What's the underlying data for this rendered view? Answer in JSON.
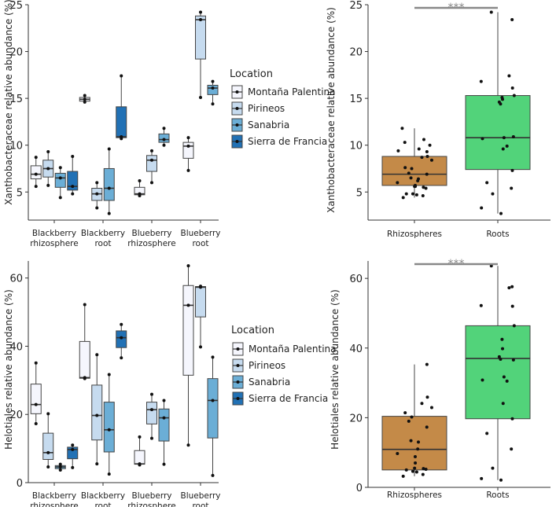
{
  "colors": {
    "legend": [
      "#f5f6fd",
      "#c6dbef",
      "#6baed6",
      "#2171b5"
    ],
    "rhizo": "#c48a48",
    "roots": "#52d37a",
    "sig": "#888888"
  },
  "legend": {
    "title": "Location",
    "entries": [
      "Montaña Palentina",
      "Pirineos",
      "Sanabria",
      "Sierra de Francia"
    ]
  },
  "chart_data": [
    {
      "id": "A",
      "type": "box",
      "ylabel": "Xanthobacteraceae relative abundance (%)",
      "ylim": [
        2,
        25
      ],
      "yticks": [
        5,
        10,
        15,
        20,
        25
      ],
      "categories": [
        [
          "Blackberry",
          "rhizosphere"
        ],
        [
          "Blackberry",
          "root"
        ],
        [
          "Blueberry",
          "rhizosphere"
        ],
        [
          "Blueberry",
          "root"
        ]
      ],
      "boxes": [
        {
          "cat": 0,
          "loc": 0,
          "min": 5.6,
          "q1": 6.4,
          "median": 6.9,
          "q3": 7.8,
          "max": 8.7,
          "points": [
            5.6,
            6.9,
            8.7
          ]
        },
        {
          "cat": 0,
          "loc": 1,
          "min": 5.7,
          "q1": 6.6,
          "median": 7.5,
          "q3": 8.4,
          "max": 9.3,
          "points": [
            5.7,
            7.5,
            9.3
          ]
        },
        {
          "cat": 0,
          "loc": 2,
          "min": 4.4,
          "q1": 5.5,
          "median": 6.5,
          "q3": 7.0,
          "max": 7.6,
          "points": [
            4.4,
            6.5,
            7.6
          ]
        },
        {
          "cat": 0,
          "loc": 3,
          "min": 4.8,
          "q1": 5.2,
          "median": 5.6,
          "q3": 7.2,
          "max": 8.8,
          "points": [
            4.8,
            5.6,
            8.8
          ]
        },
        {
          "cat": 1,
          "loc": 0,
          "min": 14.6,
          "q1": 14.7,
          "median": 14.9,
          "q3": 15.1,
          "max": 15.3,
          "points": [
            14.6,
            14.9,
            15.3
          ]
        },
        {
          "cat": 1,
          "loc": 1,
          "min": 3.3,
          "q1": 4.1,
          "median": 4.8,
          "q3": 5.4,
          "max": 6.0,
          "points": [
            3.3,
            4.8,
            6.0
          ]
        },
        {
          "cat": 1,
          "loc": 2,
          "min": 2.7,
          "q1": 4.1,
          "median": 5.4,
          "q3": 7.5,
          "max": 9.6,
          "points": [
            2.7,
            5.4,
            9.6
          ]
        },
        {
          "cat": 1,
          "loc": 3,
          "min": 10.7,
          "q1": 10.8,
          "median": 10.9,
          "q3": 14.1,
          "max": 17.4,
          "points": [
            10.7,
            10.9,
            17.4
          ]
        },
        {
          "cat": 2,
          "loc": 0,
          "min": 4.6,
          "q1": 4.7,
          "median": 4.8,
          "q3": 5.5,
          "max": 6.2,
          "points": [
            4.6,
            4.8,
            6.2
          ]
        },
        {
          "cat": 2,
          "loc": 1,
          "min": 6.0,
          "q1": 7.2,
          "median": 8.4,
          "q3": 8.9,
          "max": 9.4,
          "points": [
            6.0,
            8.4,
            9.4
          ]
        },
        {
          "cat": 2,
          "loc": 2,
          "min": 10.0,
          "q1": 10.3,
          "median": 10.6,
          "q3": 11.2,
          "max": 11.8,
          "points": [
            10.0,
            10.6,
            11.8
          ]
        },
        {
          "cat": 3,
          "loc": 0,
          "min": 7.3,
          "q1": 8.6,
          "median": 9.9,
          "q3": 10.3,
          "max": 10.8,
          "points": [
            7.3,
            9.9,
            10.8
          ]
        },
        {
          "cat": 3,
          "loc": 1,
          "min": 15.1,
          "q1": 19.2,
          "median": 23.4,
          "q3": 23.8,
          "max": 24.2,
          "points": [
            15.1,
            23.4,
            24.2
          ]
        },
        {
          "cat": 3,
          "loc": 2,
          "min": 14.4,
          "q1": 15.4,
          "median": 16.1,
          "q3": 16.4,
          "max": 16.8,
          "points": [
            14.4,
            16.1,
            16.8
          ]
        }
      ]
    },
    {
      "id": "B",
      "type": "box",
      "ylabel": "Xanthobacteraceae relative abundance (%)",
      "ylim": [
        2,
        25
      ],
      "yticks": [
        5,
        10,
        15,
        20,
        25
      ],
      "categories": [
        "Rhizospheres",
        "Roots"
      ],
      "significance": "***",
      "boxes": [
        {
          "cat": 0,
          "min": 4.4,
          "q1": 5.7,
          "median": 6.9,
          "q3": 8.8,
          "max": 11.8,
          "points": [
            4.4,
            4.6,
            4.7,
            4.8,
            4.8,
            5.4,
            5.5,
            5.6,
            5.6,
            5.7,
            6.0,
            6.2,
            6.4,
            6.5,
            6.9,
            7.0,
            7.5,
            7.6,
            8.4,
            8.7,
            8.8,
            9.3,
            9.4,
            9.6,
            10.0,
            10.3,
            10.6,
            11.8
          ]
        },
        {
          "cat": 1,
          "min": 2.7,
          "q1": 7.4,
          "median": 10.8,
          "q3": 15.3,
          "max": 24.2,
          "points": [
            2.7,
            3.3,
            4.8,
            5.4,
            6.0,
            7.3,
            9.6,
            9.9,
            10.7,
            10.8,
            10.9,
            14.4,
            14.6,
            14.9,
            15.1,
            15.3,
            16.1,
            16.8,
            17.4,
            23.4,
            24.2
          ]
        }
      ]
    },
    {
      "id": "C",
      "type": "box",
      "ylabel": "Helotiales relative abundance (%)",
      "ylim": [
        0,
        65
      ],
      "yticks": [
        0,
        20,
        40,
        60
      ],
      "categories": [
        [
          "Blackberry",
          "rhizosphere"
        ],
        [
          "Blackberry",
          "root"
        ],
        [
          "Blueberry",
          "rhizosphere"
        ],
        [
          "Blueberry",
          "root"
        ]
      ],
      "boxes": [
        {
          "cat": 0,
          "loc": 0,
          "min": 17.3,
          "q1": 20.2,
          "median": 22.9,
          "q3": 28.9,
          "max": 35.1,
          "points": [
            17.3,
            22.9,
            35.1
          ]
        },
        {
          "cat": 0,
          "loc": 1,
          "min": 4.6,
          "q1": 6.8,
          "median": 8.8,
          "q3": 14.5,
          "max": 20.2,
          "points": [
            4.6,
            8.8,
            20.2
          ]
        },
        {
          "cat": 0,
          "loc": 2,
          "min": 3.7,
          "q1": 4.1,
          "median": 4.6,
          "q3": 5.0,
          "max": 5.4,
          "points": [
            3.7,
            4.6,
            5.4
          ]
        },
        {
          "cat": 0,
          "loc": 3,
          "min": 4.4,
          "q1": 7.0,
          "median": 9.7,
          "q3": 10.4,
          "max": 11.0,
          "points": [
            4.4,
            9.7,
            11.0
          ]
        },
        {
          "cat": 1,
          "loc": 0,
          "min": 30.5,
          "q1": 30.6,
          "median": 30.8,
          "q3": 41.4,
          "max": 52.2,
          "points": [
            30.5,
            30.8,
            52.2
          ]
        },
        {
          "cat": 1,
          "loc": 1,
          "min": 5.5,
          "q1": 12.5,
          "median": 19.7,
          "q3": 28.6,
          "max": 37.5,
          "points": [
            5.5,
            19.7,
            37.5
          ]
        },
        {
          "cat": 1,
          "loc": 2,
          "min": 2.5,
          "q1": 9.0,
          "median": 15.5,
          "q3": 23.6,
          "max": 31.7,
          "points": [
            2.5,
            15.5,
            31.7
          ]
        },
        {
          "cat": 1,
          "loc": 3,
          "min": 36.6,
          "q1": 39.6,
          "median": 42.5,
          "q3": 44.5,
          "max": 46.4,
          "points": [
            36.6,
            42.5,
            46.4
          ]
        },
        {
          "cat": 2,
          "loc": 0,
          "min": 5.2,
          "q1": 5.4,
          "median": 5.5,
          "q3": 9.4,
          "max": 13.4,
          "points": [
            5.2,
            5.5,
            13.4
          ]
        },
        {
          "cat": 2,
          "loc": 1,
          "min": 13.0,
          "q1": 17.2,
          "median": 21.4,
          "q3": 23.6,
          "max": 25.9,
          "points": [
            13.0,
            21.4,
            25.9
          ]
        },
        {
          "cat": 2,
          "loc": 2,
          "min": 5.4,
          "q1": 12.2,
          "median": 19.0,
          "q3": 21.6,
          "max": 24.1,
          "points": [
            5.4,
            19.0,
            24.1
          ]
        },
        {
          "cat": 3,
          "loc": 0,
          "min": 11.0,
          "q1": 31.5,
          "median": 52.0,
          "q3": 57.8,
          "max": 63.6,
          "points": [
            11.0,
            52.0,
            63.6
          ]
        },
        {
          "cat": 3,
          "loc": 1,
          "min": 39.8,
          "q1": 48.6,
          "median": 57.3,
          "q3": 57.5,
          "max": 57.6,
          "points": [
            39.8,
            57.3,
            57.6
          ]
        },
        {
          "cat": 3,
          "loc": 2,
          "min": 2.1,
          "q1": 13.1,
          "median": 24.1,
          "q3": 30.5,
          "max": 36.8,
          "points": [
            2.1,
            24.1,
            36.8
          ]
        }
      ]
    },
    {
      "id": "D",
      "type": "box",
      "ylabel": "Helotiales relative abundance (%)",
      "ylim": [
        0,
        65
      ],
      "yticks": [
        0,
        20,
        40,
        60
      ],
      "categories": [
        "Rhizospheres",
        "Roots"
      ],
      "significance": "***",
      "boxes": [
        {
          "cat": 0,
          "min": 3.2,
          "q1": 5.0,
          "median": 10.9,
          "q3": 20.4,
          "max": 35.3,
          "points": [
            3.2,
            3.7,
            4.4,
            4.6,
            5.0,
            5.2,
            5.4,
            5.5,
            7.0,
            8.8,
            9.7,
            11.0,
            13.0,
            13.4,
            17.3,
            19.0,
            20.2,
            21.4,
            22.9,
            24.1,
            25.9,
            35.3
          ]
        },
        {
          "cat": 1,
          "min": 2.1,
          "q1": 19.7,
          "median": 37.0,
          "q3": 46.4,
          "max": 63.6,
          "points": [
            2.1,
            2.5,
            5.5,
            11.0,
            15.5,
            19.7,
            24.1,
            30.5,
            30.8,
            31.7,
            36.6,
            36.8,
            37.5,
            39.8,
            42.5,
            46.4,
            52.0,
            52.2,
            57.3,
            57.6,
            63.6
          ]
        }
      ]
    }
  ]
}
